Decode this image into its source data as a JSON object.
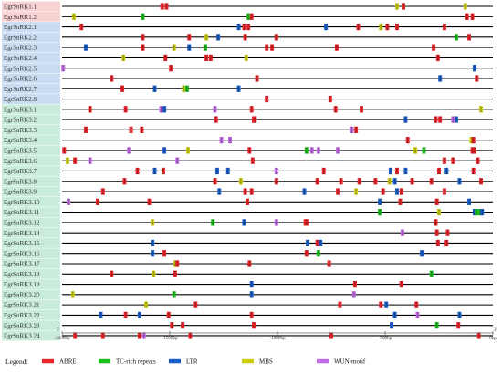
{
  "chart_data": {
    "type": "scatter",
    "x_unit": "bp",
    "xlim": [
      -2000,
      0
    ],
    "axis_end_labels": {
      "left": "5'",
      "right": "3'"
    },
    "ticks": [
      {
        "value": -2000,
        "label": "-2000bp"
      },
      {
        "value": -1500,
        "label": "-1500bp"
      },
      {
        "value": -1000,
        "label": "-1000bp"
      },
      {
        "value": -500,
        "label": "-500bp"
      },
      {
        "value": 0,
        "label": "0bp"
      }
    ],
    "legend": {
      "title": "Legend:",
      "items": [
        {
          "key": "ABRE",
          "label": "ABRE",
          "color": "#e8262b"
        },
        {
          "key": "TC",
          "label": "TC-rich repeats",
          "color": "#1bbf1e"
        },
        {
          "key": "LTR",
          "label": "LTR",
          "color": "#1a5fc8"
        },
        {
          "key": "MBS",
          "label": "MBS",
          "color": "#cccc10"
        },
        {
          "key": "WUN",
          "label": "WUN-motif",
          "color": "#c06ae3"
        }
      ]
    },
    "groups": [
      {
        "name": "EgrSnRK1",
        "color": "#f8d1d2"
      },
      {
        "name": "EgrSnRK2",
        "color": "#c9dcf2"
      },
      {
        "name": "EgrSnRK3",
        "color": "#c8ecd9"
      }
    ],
    "genes": [
      {
        "name": "EgrSnRK1.1",
        "group": 0,
        "sites": [
          [
            "ABRE",
            -1535
          ],
          [
            "ABRE",
            -1515
          ],
          [
            "MBS",
            -445
          ],
          [
            "ABRE",
            -415
          ],
          [
            "MBS",
            -128
          ]
        ]
      },
      {
        "name": "EgrSnRK1.2",
        "group": 0,
        "sites": [
          [
            "MBS",
            -1945
          ],
          [
            "TC",
            -1625
          ],
          [
            "TC",
            -1135
          ],
          [
            "ABRE",
            -1120
          ],
          [
            "ABRE",
            -120
          ],
          [
            "ABRE",
            -95
          ]
        ]
      },
      {
        "name": "EgrSnRK2.1",
        "group": 1,
        "sites": [
          [
            "ABRE",
            -1910
          ],
          [
            "LTR",
            -1180
          ],
          [
            "ABRE",
            -1155
          ],
          [
            "ABRE",
            -1135
          ],
          [
            "LTR",
            -775
          ],
          [
            "ABRE",
            -625
          ],
          [
            "MBS",
            -520
          ],
          [
            "ABRE",
            -490
          ],
          [
            "ABRE",
            -445
          ],
          [
            "ABRE",
            -225
          ]
        ]
      },
      {
        "name": "EgrSnRK2.2",
        "group": 1,
        "sites": [
          [
            "ABRE",
            -1625
          ],
          [
            "ABRE",
            -1410
          ],
          [
            "MBS",
            -1330
          ],
          [
            "LTR",
            -1275
          ],
          [
            "ABRE",
            -1150
          ],
          [
            "ABRE",
            -1005
          ],
          [
            "TC",
            -170
          ],
          [
            "ABRE",
            -110
          ]
        ]
      },
      {
        "name": "EgrSnRK2.3",
        "group": 1,
        "sites": [
          [
            "LTR",
            -1890
          ],
          [
            "ABRE",
            -1625
          ],
          [
            "MBS",
            -1480
          ],
          [
            "LTR",
            -1410
          ],
          [
            "TC",
            -1335
          ],
          [
            "ABRE",
            -1050
          ],
          [
            "ABRE",
            -1025
          ],
          [
            "ABRE",
            -725
          ],
          [
            "ABRE",
            -275
          ]
        ]
      },
      {
        "name": "EgrSnRK2.4",
        "group": 1,
        "sites": [
          [
            "MBS",
            -1715
          ],
          [
            "ABRE",
            -1520
          ],
          [
            "ABRE",
            -1330
          ],
          [
            "ABRE",
            -1310
          ],
          [
            "MBS",
            -1145
          ],
          [
            "ABRE",
            -255
          ]
        ]
      },
      {
        "name": "EgrSnRK2.5",
        "group": 1,
        "sites": [
          [
            "WUN",
            -1995
          ],
          [
            "ABRE",
            -1495
          ],
          [
            "LTR",
            -85
          ]
        ]
      },
      {
        "name": "EgrSnRK2.6",
        "group": 1,
        "sites": [
          [
            "ABRE",
            -1770
          ],
          [
            "ABRE",
            -1095
          ],
          [
            "LTR",
            -245
          ],
          [
            "ABRE",
            -75
          ]
        ]
      },
      {
        "name": "EgrSnRK2.7",
        "group": 1,
        "sites": [
          [
            "ABRE",
            -1720
          ],
          [
            "LTR",
            -1570
          ],
          [
            "MBS",
            -1435
          ],
          [
            "TC",
            -1420
          ],
          [
            "LTR",
            -1180
          ]
        ]
      },
      {
        "name": "EgrSnRK2.8",
        "group": 1,
        "sites": [
          [
            "ABRE",
            -1050
          ],
          [
            "ABRE",
            -755
          ]
        ]
      },
      {
        "name": "EgrSnRK3.1",
        "group": 2,
        "sites": [
          [
            "ABRE",
            -1870
          ],
          [
            "ABRE",
            -1705
          ],
          [
            "WUN",
            -1540
          ],
          [
            "LTR",
            -1525
          ],
          [
            "WUN",
            -1290
          ],
          [
            "ABRE",
            -1120
          ],
          [
            "ABRE",
            -730
          ],
          [
            "ABRE",
            -610
          ],
          [
            "MBS",
            -55
          ]
        ]
      },
      {
        "name": "EgrSnRK3.2",
        "group": 2,
        "sites": [
          [
            "ABRE",
            -1285
          ],
          [
            "ABRE",
            -1110
          ],
          [
            "ABRE",
            -1105
          ],
          [
            "LTR",
            -405
          ],
          [
            "ABRE",
            -265
          ],
          [
            "ABRE",
            -245
          ],
          [
            "WUN",
            -185
          ],
          [
            "LTR",
            -170
          ]
        ]
      },
      {
        "name": "EgrSnRK3.3",
        "group": 2,
        "sites": [
          [
            "ABRE",
            -1890
          ],
          [
            "ABRE",
            -1680
          ],
          [
            "ABRE",
            -1630
          ],
          [
            "WUN",
            -655
          ],
          [
            "ABRE",
            -635
          ]
        ]
      },
      {
        "name": "EgrSnRK3.4",
        "group": 2,
        "sites": [
          [
            "WUN",
            -1260
          ],
          [
            "WUN",
            -1220
          ],
          [
            "ABRE",
            -395
          ],
          [
            "MBS",
            -100
          ],
          [
            "ABRE",
            -90
          ]
        ]
      },
      {
        "name": "EgrSnRK3.5",
        "group": 2,
        "sites": [
          [
            "ABRE",
            -1990
          ],
          [
            "WUN",
            -1690
          ],
          [
            "LTR",
            -1525
          ],
          [
            "MBS",
            -1415
          ],
          [
            "ABRE",
            -1130
          ],
          [
            "TC",
            -865
          ],
          [
            "WUN",
            -840
          ],
          [
            "WUN",
            -810
          ],
          [
            "WUN",
            -720
          ],
          [
            "MBS",
            -360
          ],
          [
            "TC",
            -320
          ],
          [
            "ABRE",
            -95
          ],
          [
            "ABRE",
            -85
          ]
        ]
      },
      {
        "name": "EgrSnRK3.6",
        "group": 2,
        "sites": [
          [
            "MBS",
            -1975
          ],
          [
            "ABRE",
            -1940
          ],
          [
            "WUN",
            -1870
          ],
          [
            "WUN",
            -1465
          ],
          [
            "ABRE",
            -1115
          ],
          [
            "ABRE",
            -225
          ],
          [
            "ABRE",
            -185
          ],
          [
            "ABRE",
            -70
          ]
        ]
      },
      {
        "name": "EgrSnRK3.7",
        "group": 2,
        "sites": [
          [
            "ABRE",
            -1650
          ],
          [
            "LTR",
            -1570
          ],
          [
            "ABRE",
            -1530
          ],
          [
            "LTR",
            -1280
          ],
          [
            "LTR",
            -1230
          ],
          [
            "WUN",
            -1005
          ],
          [
            "ABRE",
            -785
          ],
          [
            "LTR",
            -475
          ],
          [
            "ABRE",
            -445
          ],
          [
            "LTR",
            -405
          ],
          [
            "ABRE",
            -250
          ],
          [
            "LTR",
            -215
          ],
          [
            "ABRE",
            -90
          ]
        ]
      },
      {
        "name": "EgrSnRK3.8",
        "group": 2,
        "sites": [
          [
            "ABRE",
            -1710
          ],
          [
            "ABRE",
            -1290
          ],
          [
            "MBS",
            -1170
          ],
          [
            "ABRE",
            -1005
          ],
          [
            "ABRE",
            -815
          ],
          [
            "ABRE",
            -705
          ],
          [
            "ABRE",
            -620
          ],
          [
            "ABRE",
            -545
          ],
          [
            "MBS",
            -480
          ],
          [
            "LTR",
            -455
          ],
          [
            "ABRE",
            -375
          ],
          [
            "ABRE",
            -285
          ],
          [
            "LTR",
            -155
          ],
          [
            "ABRE",
            -55
          ]
        ]
      },
      {
        "name": "EgrSnRK3.9",
        "group": 2,
        "sites": [
          [
            "ABRE",
            -1810
          ],
          [
            "LTR",
            -1270
          ],
          [
            "ABRE",
            -1150
          ],
          [
            "ABRE",
            -1120
          ],
          [
            "LTR",
            -875
          ],
          [
            "ABRE",
            -720
          ],
          [
            "MBS",
            -635
          ],
          [
            "ABRE",
            -510
          ],
          [
            "LTR",
            -445
          ],
          [
            "ABRE",
            -425
          ],
          [
            "ABRE",
            -225
          ]
        ]
      },
      {
        "name": "EgrSnRK3.10",
        "group": 2,
        "sites": [
          [
            "WUN",
            -1970
          ],
          [
            "ABRE",
            -1835
          ],
          [
            "ABRE",
            -1595
          ],
          [
            "ABRE",
            -1140
          ],
          [
            "LTR",
            -525
          ],
          [
            "ABRE",
            -430
          ],
          [
            "ABRE",
            -260
          ],
          [
            "LTR",
            -110
          ]
        ]
      },
      {
        "name": "EgrSnRK3.11",
        "group": 2,
        "sites": [
          [
            "TC",
            -525
          ],
          [
            "MBS",
            -250
          ],
          [
            "LTR",
            -85
          ],
          [
            "TC",
            -75
          ],
          [
            "TC",
            -60
          ],
          [
            "LTR",
            -50
          ]
        ]
      },
      {
        "name": "EgrSnRK3.12",
        "group": 2,
        "sites": [
          [
            "MBS",
            -1580
          ],
          [
            "TC",
            -1300
          ],
          [
            "LTR",
            -1155
          ],
          [
            "WUN",
            -1005
          ],
          [
            "ABRE",
            -870
          ],
          [
            "ABRE",
            -865
          ],
          [
            "ABRE",
            -265
          ]
        ]
      },
      {
        "name": "EgrSnRK3.14",
        "group": 2,
        "sites": [
          [
            "WUN",
            -420
          ],
          [
            "ABRE",
            -260
          ],
          [
            "ABRE",
            -210
          ]
        ]
      },
      {
        "name": "EgrSnRK3.15",
        "group": 2,
        "sites": [
          [
            "LTR",
            -1580
          ],
          [
            "LTR",
            -860
          ],
          [
            "ABRE",
            -815
          ],
          [
            "LTR",
            -800
          ],
          [
            "ABRE",
            -255
          ],
          [
            "ABRE",
            -215
          ]
        ]
      },
      {
        "name": "EgrSnRK3.16",
        "group": 2,
        "sites": [
          [
            "LTR",
            -1580
          ],
          [
            "ABRE",
            -1525
          ],
          [
            "ABRE",
            -865
          ],
          [
            "TC",
            -810
          ],
          [
            "LTR",
            -330
          ]
        ]
      },
      {
        "name": "EgrSnRK3.17",
        "group": 2,
        "sites": [
          [
            "MBS",
            -1475
          ],
          [
            "ABRE",
            -1465
          ],
          [
            "ABRE",
            -1130
          ],
          [
            "ABRE",
            -760
          ]
        ]
      },
      {
        "name": "EgrSnRK3.18",
        "group": 2,
        "sites": [
          [
            "ABRE",
            -1770
          ],
          [
            "MBS",
            -1575
          ],
          [
            "ABRE",
            -1475
          ],
          [
            "TC",
            -285
          ]
        ]
      },
      {
        "name": "EgrSnRK3.19",
        "group": 2,
        "sites": [
          [
            "LTR",
            -1120
          ],
          [
            "ABRE",
            -640
          ],
          [
            "ABRE",
            -425
          ]
        ]
      },
      {
        "name": "EgrSnRK3.20",
        "group": 2,
        "sites": [
          [
            "MBS",
            -1950
          ],
          [
            "TC",
            -1480
          ],
          [
            "LTR",
            -1120
          ],
          [
            "WUN",
            -645
          ]
        ]
      },
      {
        "name": "EgrSnRK3.21",
        "group": 2,
        "sites": [
          [
            "MBS",
            -1610
          ],
          [
            "ABRE",
            -1380
          ],
          [
            "ABRE",
            -710
          ],
          [
            "ABRE",
            -520
          ],
          [
            "LTR",
            -495
          ],
          [
            "ABRE",
            -355
          ]
        ]
      },
      {
        "name": "EgrSnRK3.22",
        "group": 2,
        "sites": [
          [
            "LTR",
            -1820
          ],
          [
            "ABRE",
            -1705
          ],
          [
            "LTR",
            -1640
          ],
          [
            "ABRE",
            -1505
          ],
          [
            "ABRE",
            -1120
          ],
          [
            "LTR",
            -455
          ],
          [
            "WUN",
            -350
          ],
          [
            "LTR",
            -155
          ]
        ]
      },
      {
        "name": "EgrSnRK3.23",
        "group": 2,
        "sites": [
          [
            "ABRE",
            -1490
          ],
          [
            "ABRE",
            -1440
          ],
          [
            "ABRE",
            -1110
          ],
          [
            "LTR",
            -470
          ],
          [
            "TC",
            -260
          ],
          [
            "ABRE",
            -160
          ]
        ]
      },
      {
        "name": "EgrSnRK3.24",
        "group": 2,
        "sites": [
          [
            "ABRE",
            -1940
          ],
          [
            "ABRE",
            -1810
          ],
          [
            "ABRE",
            -1640
          ],
          [
            "WUN",
            -1620
          ],
          [
            "ABRE",
            -1405
          ],
          [
            "ABRE",
            -750
          ],
          [
            "ABRE",
            -65
          ]
        ]
      }
    ]
  }
}
